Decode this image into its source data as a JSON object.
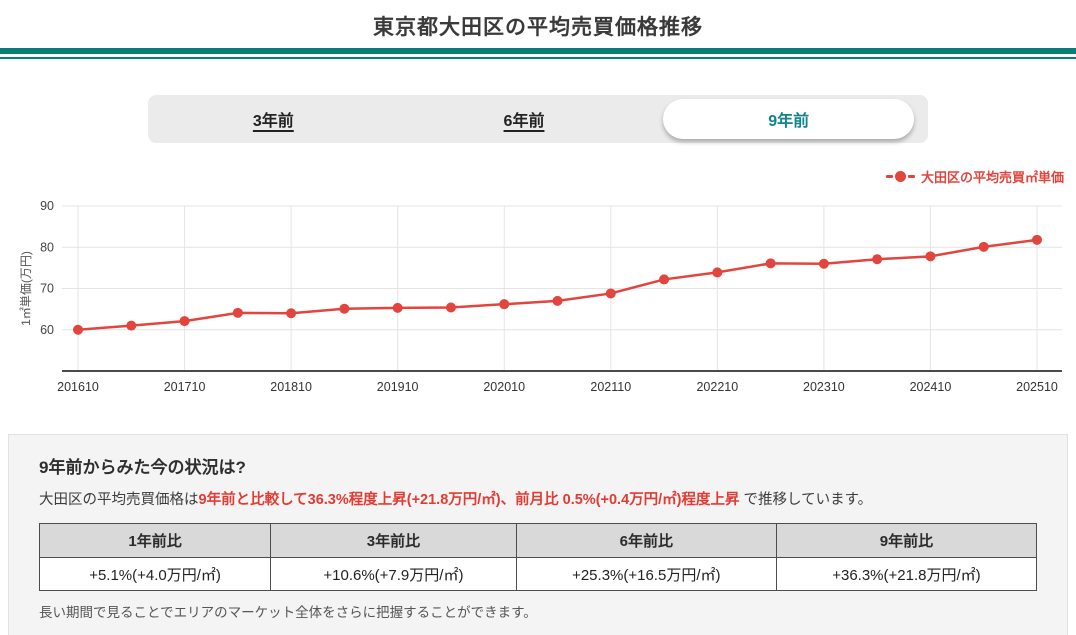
{
  "colors": {
    "accent_teal": "#0b7d79",
    "active_tab_teal": "#11848a",
    "chart_red": "#e2453d",
    "highlight_red": "#e23b33",
    "table_header_gray": "#d9d9d9",
    "summary_bg": "#f4f4f4"
  },
  "header": {
    "title": "東京都大田区の平均売買価格推移"
  },
  "tabs": [
    {
      "label": "3年前",
      "active": false
    },
    {
      "label": "6年前",
      "active": false
    },
    {
      "label": "9年前",
      "active": true
    }
  ],
  "legend": {
    "label": "大田区の平均売買㎡単価"
  },
  "chart_data": {
    "type": "line",
    "title": "",
    "x": [
      "201610",
      "201704",
      "201710",
      "201804",
      "201810",
      "201904",
      "201910",
      "202004",
      "202010",
      "202104",
      "202110",
      "202204",
      "202210",
      "202304",
      "202310",
      "202404",
      "202410",
      "202504",
      "202510"
    ],
    "series": [
      {
        "name": "大田区の平均売買㎡単価",
        "color": "#e2453d",
        "values": [
          60.0,
          61.0,
          62.1,
          64.1,
          64.0,
          65.1,
          65.3,
          65.4,
          66.2,
          67.0,
          68.8,
          72.2,
          73.9,
          76.1,
          76.0,
          77.1,
          77.8,
          80.1,
          81.8
        ]
      }
    ],
    "xlabel": "",
    "ylabel": "1㎡単価(万円)",
    "ylim": [
      50,
      90
    ],
    "y_ticks": [
      60,
      70,
      80,
      90
    ],
    "x_tick_labels": [
      "201610",
      "201710",
      "201810",
      "201910",
      "202010",
      "202110",
      "202210",
      "202310",
      "202410",
      "202510"
    ],
    "grid": true,
    "legend_position": "top-right"
  },
  "summary": {
    "heading": "9年前からみた今の状況は?",
    "lead_plain": "大田区の平均売買価格は",
    "lead_highlight": "9年前と比較して36.3%程度上昇(+21.8万円/㎡)、前月比 0.5%(+0.4万円/㎡)程度上昇",
    "lead_tail": " で推移しています。",
    "table": {
      "columns": [
        {
          "header": "1年前比",
          "value": "+5.1%(+4.0万円/㎡)"
        },
        {
          "header": "3年前比",
          "value": "+10.6%(+7.9万円/㎡)"
        },
        {
          "header": "6年前比",
          "value": "+25.3%(+16.5万円/㎡)"
        },
        {
          "header": "9年前比",
          "value": "+36.3%(+21.8万円/㎡)"
        }
      ]
    },
    "footnote": "長い期間で見ることでエリアのマーケット全体をさらに把握することができます。"
  }
}
